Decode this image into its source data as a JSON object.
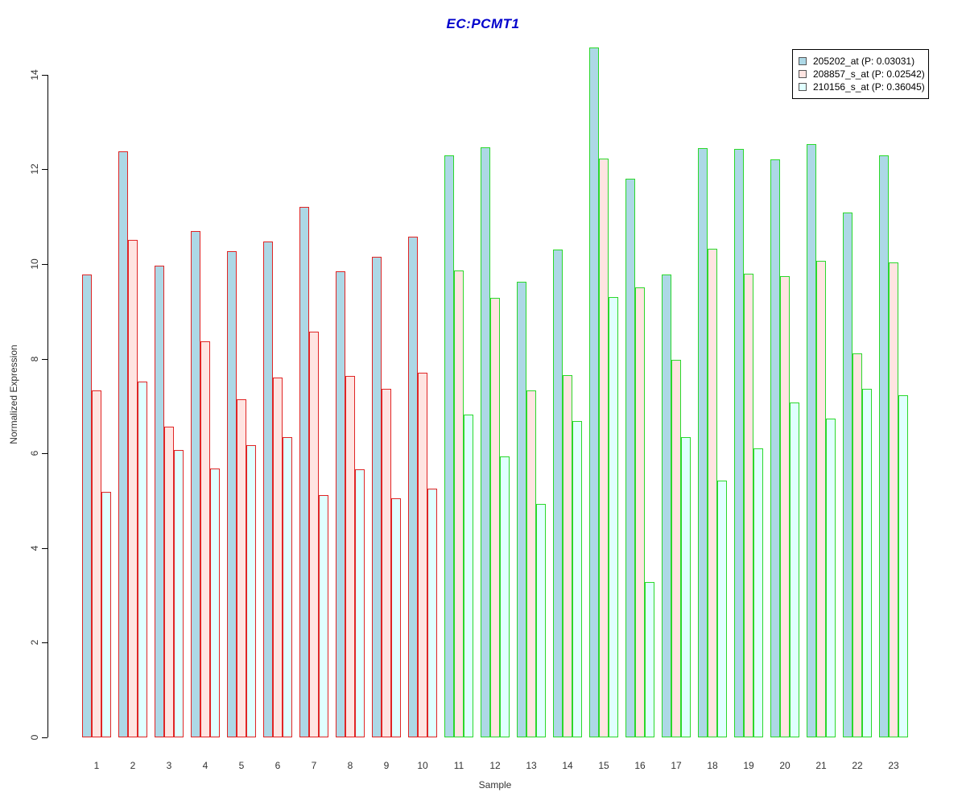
{
  "title": "EC:PCMT1",
  "title_color": "#0000cc",
  "axes": {
    "xlabel": "Sample",
    "ylabel": "Normalized Expression"
  },
  "legend": {
    "position": "top-right",
    "items": [
      {
        "label": "205202_at (P: 0.03031)",
        "swatch_fill": "#add8e6"
      },
      {
        "label": "208857_s_at (P: 0.02542)",
        "swatch_fill": "#ffe4e1"
      },
      {
        "label": "210156_s_at (P: 0.36045)",
        "swatch_fill": "#e0ffff"
      }
    ]
  },
  "chart_data": {
    "type": "bar",
    "title": "EC:PCMT1",
    "xlabel": "Sample",
    "ylabel": "Normalized Expression",
    "ylim": [
      0,
      14.6
    ],
    "yticks": [
      0,
      2,
      4,
      6,
      8,
      10,
      12,
      14
    ],
    "grid": false,
    "legend_position": "top-right",
    "categories": [
      "1",
      "2",
      "3",
      "4",
      "5",
      "6",
      "7",
      "8",
      "9",
      "10",
      "11",
      "12",
      "13",
      "14",
      "15",
      "16",
      "17",
      "18",
      "19",
      "20",
      "21",
      "22",
      "23"
    ],
    "series": [
      {
        "name": "205202_at",
        "p_value": 0.03031,
        "legend_label": "205202_at (P: 0.03031)",
        "fill": "#add8e6",
        "values": [
          9.78,
          12.38,
          9.97,
          10.7,
          10.27,
          10.47,
          11.21,
          9.85,
          10.15,
          10.58,
          12.3,
          12.46,
          9.62,
          10.3,
          14.58,
          11.81,
          9.78,
          12.45,
          12.43,
          12.21,
          12.54,
          11.09,
          12.3
        ]
      },
      {
        "name": "208857_s_at",
        "p_value": 0.02542,
        "legend_label": "208857_s_at (P: 0.02542)",
        "fill": "#ffe4e1",
        "values": [
          7.33,
          10.51,
          6.56,
          8.37,
          7.14,
          7.61,
          8.57,
          7.63,
          7.36,
          7.7,
          9.86,
          9.28,
          7.33,
          7.66,
          12.22,
          9.5,
          7.98,
          10.33,
          9.8,
          9.74,
          10.06,
          8.11,
          10.04
        ]
      },
      {
        "name": "210156_s_at",
        "p_value": 0.36045,
        "legend_label": "210156_s_at (P: 0.36045)",
        "fill": "#e0ffff",
        "values": [
          5.19,
          7.52,
          6.07,
          5.68,
          6.17,
          6.34,
          5.12,
          5.66,
          5.05,
          5.26,
          6.82,
          5.93,
          4.93,
          6.68,
          9.3,
          3.29,
          6.35,
          5.43,
          6.11,
          7.08,
          6.73,
          7.36,
          7.23
        ]
      }
    ],
    "bar_border_colors": {
      "samples_1_10": "#e02525",
      "samples_11_23": "#2bd82b"
    },
    "border_color_note": "red borders for samples 1-10, green borders for samples 11-23"
  }
}
